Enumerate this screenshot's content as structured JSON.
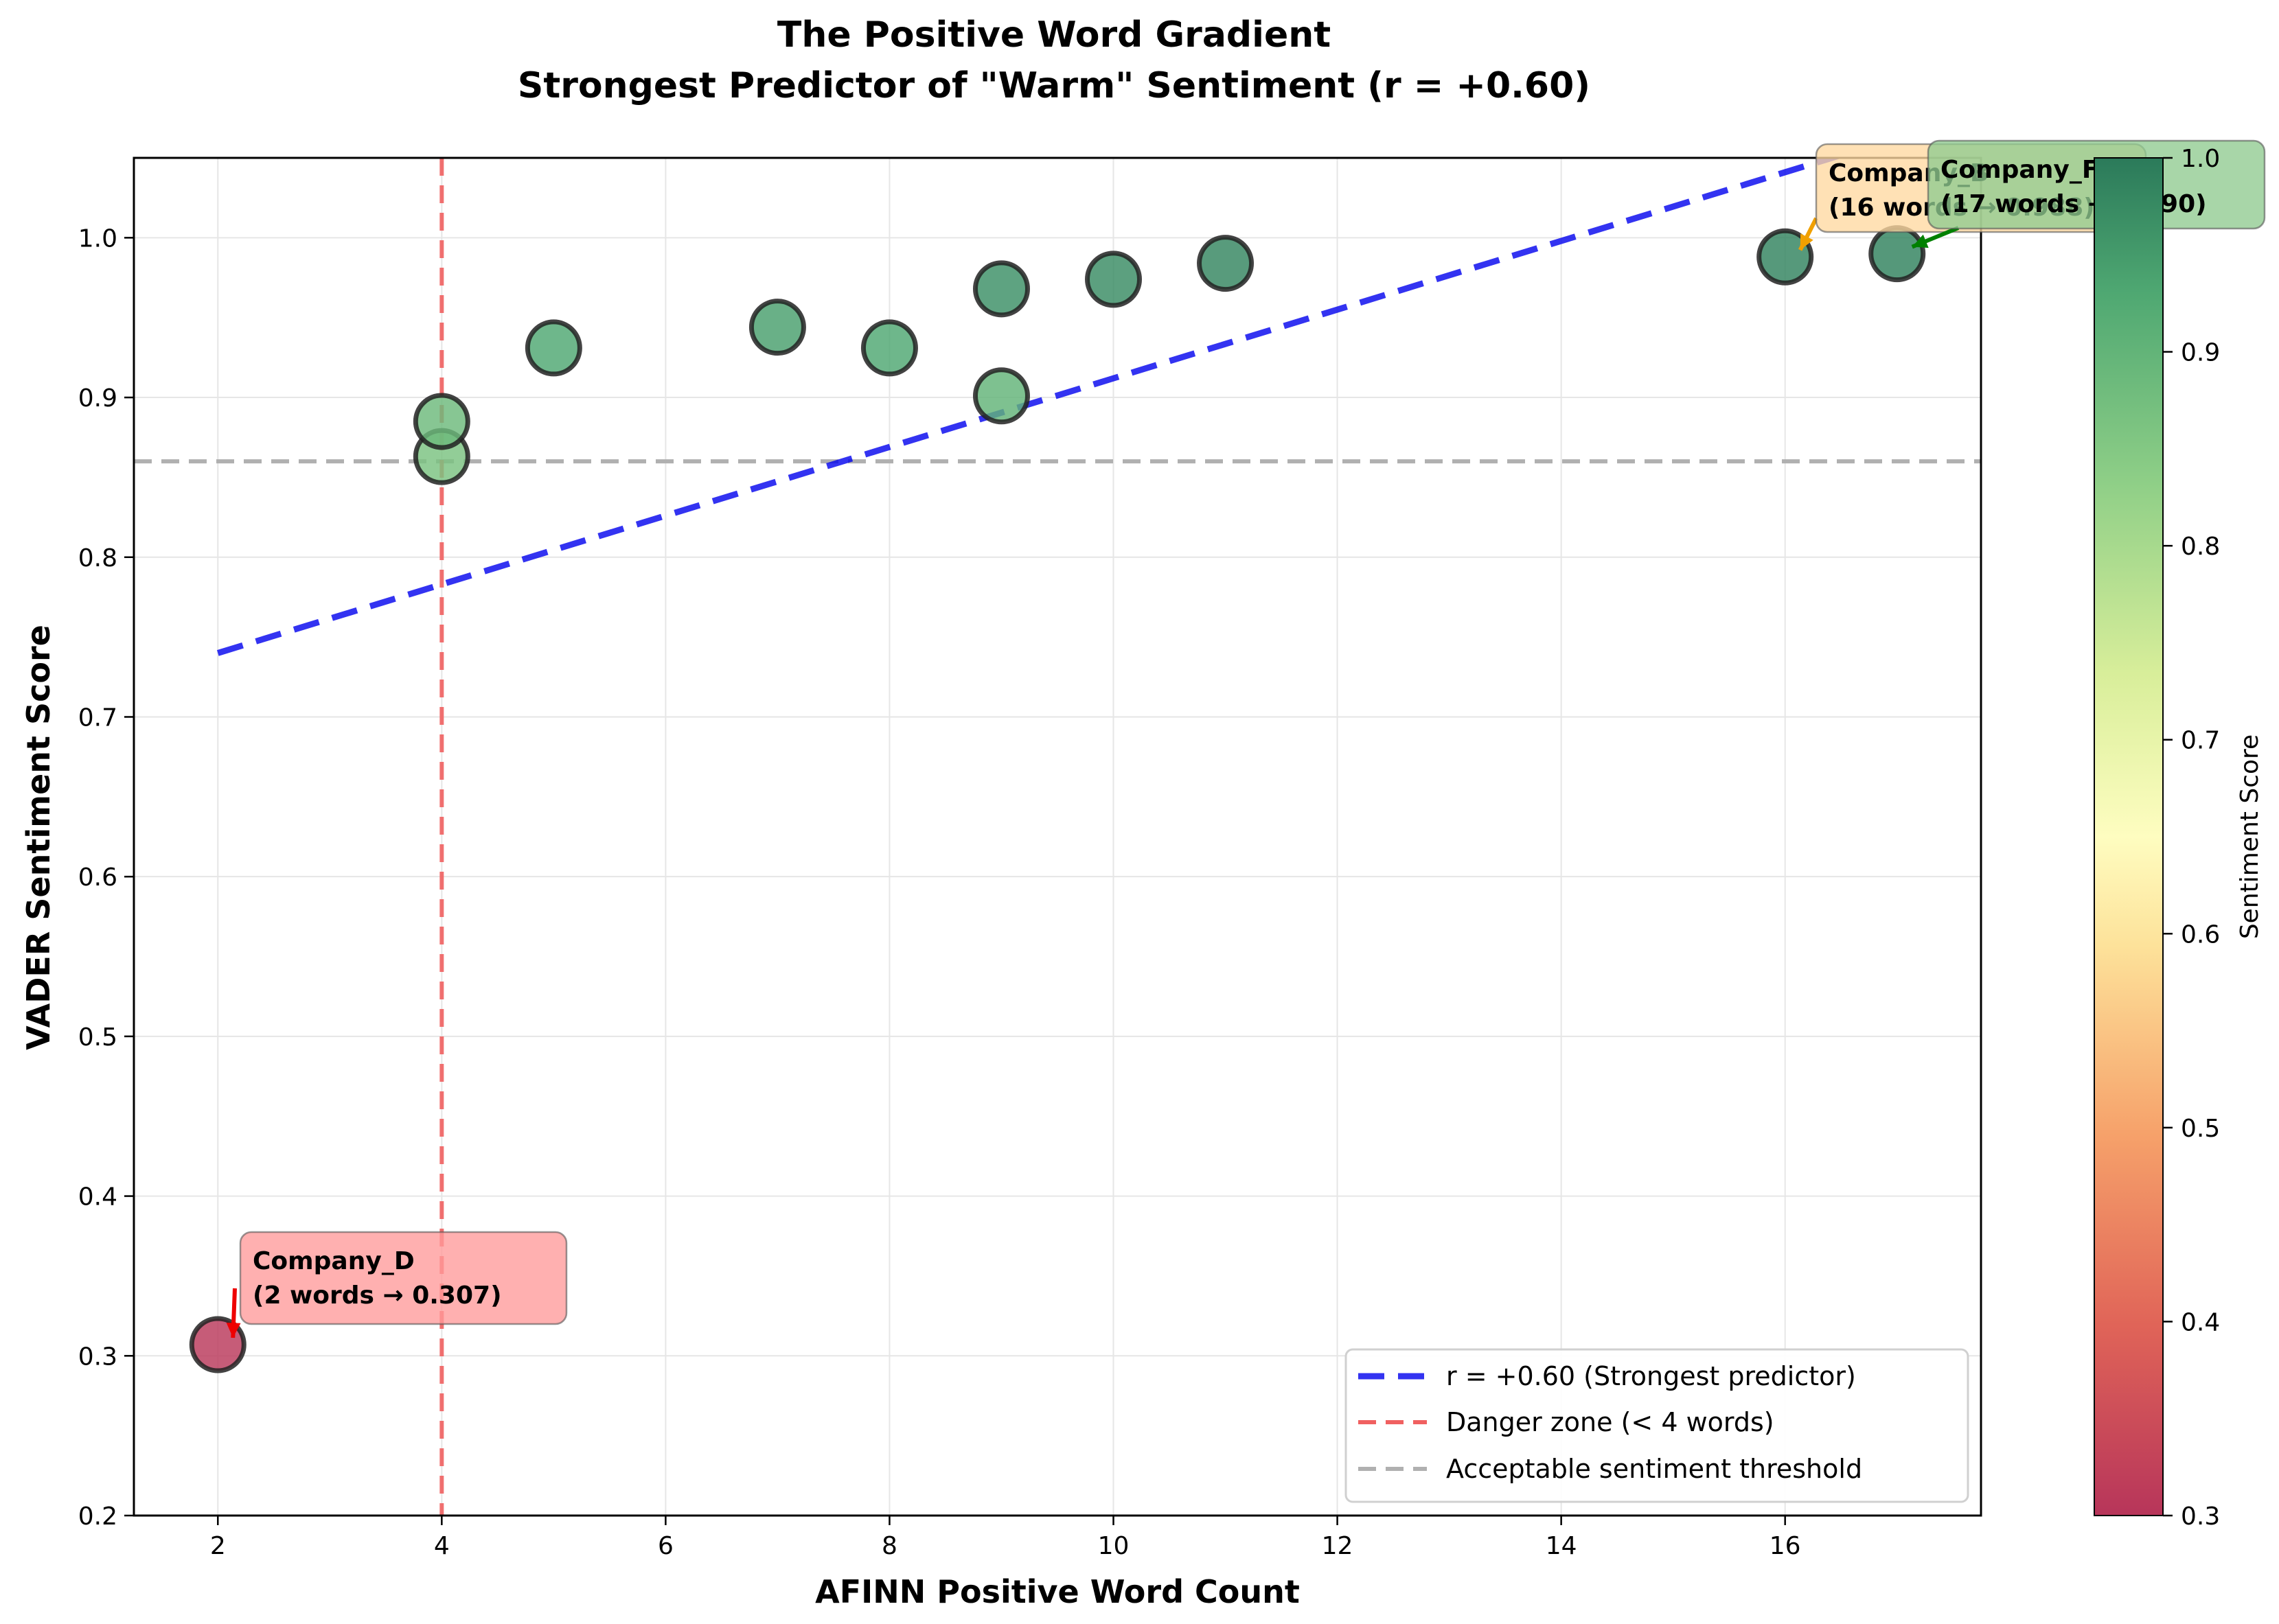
{
  "chart_data": {
    "type": "scatter",
    "title": "The Positive Word Gradient",
    "subtitle": "Strongest Predictor of \"Warm\" Sentiment (r = +0.60)",
    "xlabel": "AFINN Positive Word Count",
    "ylabel": "VADER Sentiment Score",
    "xlim": [
      1.25,
      17.75
    ],
    "ylim": [
      0.2,
      1.05
    ],
    "x_ticks": [
      "2",
      "4",
      "6",
      "8",
      "10",
      "12",
      "14",
      "16"
    ],
    "y_ticks": [
      "0.2",
      "0.3",
      "0.4",
      "0.5",
      "0.6",
      "0.7",
      "0.8",
      "0.9",
      "1.0"
    ],
    "grid": true,
    "legend_position": "bottom-right",
    "points": [
      {
        "x": 2,
        "y": 0.307
      },
      {
        "x": 4,
        "y": 0.863
      },
      {
        "x": 4,
        "y": 0.885
      },
      {
        "x": 5,
        "y": 0.931
      },
      {
        "x": 7,
        "y": 0.944
      },
      {
        "x": 8,
        "y": 0.931
      },
      {
        "x": 9,
        "y": 0.901
      },
      {
        "x": 9,
        "y": 0.968
      },
      {
        "x": 10,
        "y": 0.974
      },
      {
        "x": 11,
        "y": 0.984
      },
      {
        "x": 16,
        "y": 0.988
      },
      {
        "x": 17,
        "y": 0.99
      }
    ],
    "trend_line": {
      "label": "r = +0.60 (Strongest predictor)",
      "slope": 0.0215,
      "intercept": 0.697,
      "x_start": 2,
      "x_end": 17.75,
      "color": "#0000ee"
    },
    "danger_line": {
      "label": "Danger zone (< 4 words)",
      "x": 4,
      "color": "#f06060"
    },
    "threshold_line": {
      "label": "Acceptable sentiment threshold",
      "y": 0.86,
      "color": "#b0b0b0"
    },
    "annotations": [
      {
        "line1": "Company_D",
        "line2": "(2 words → 0.307)",
        "x": 2,
        "y": 0.307,
        "box_color": "#ff9a9a",
        "arrow_color": "#ee0000"
      },
      {
        "line1": "Company_B",
        "line2": "(16 words → 0.988)",
        "x": 16,
        "y": 0.988,
        "box_color": "#ffd9a0",
        "arrow_color": "#f0a000"
      },
      {
        "line1": "Company_F",
        "line2": "(17 words → 0.990)",
        "x": 17,
        "y": 0.99,
        "box_color": "#8fca90",
        "arrow_color": "#008000"
      }
    ],
    "colorbar": {
      "label": "Sentiment Score",
      "min": 0.3,
      "max": 1.0,
      "ticks": [
        "0.3",
        "0.4",
        "0.5",
        "0.6",
        "0.7",
        "0.8",
        "0.9",
        "1.0"
      ]
    }
  }
}
